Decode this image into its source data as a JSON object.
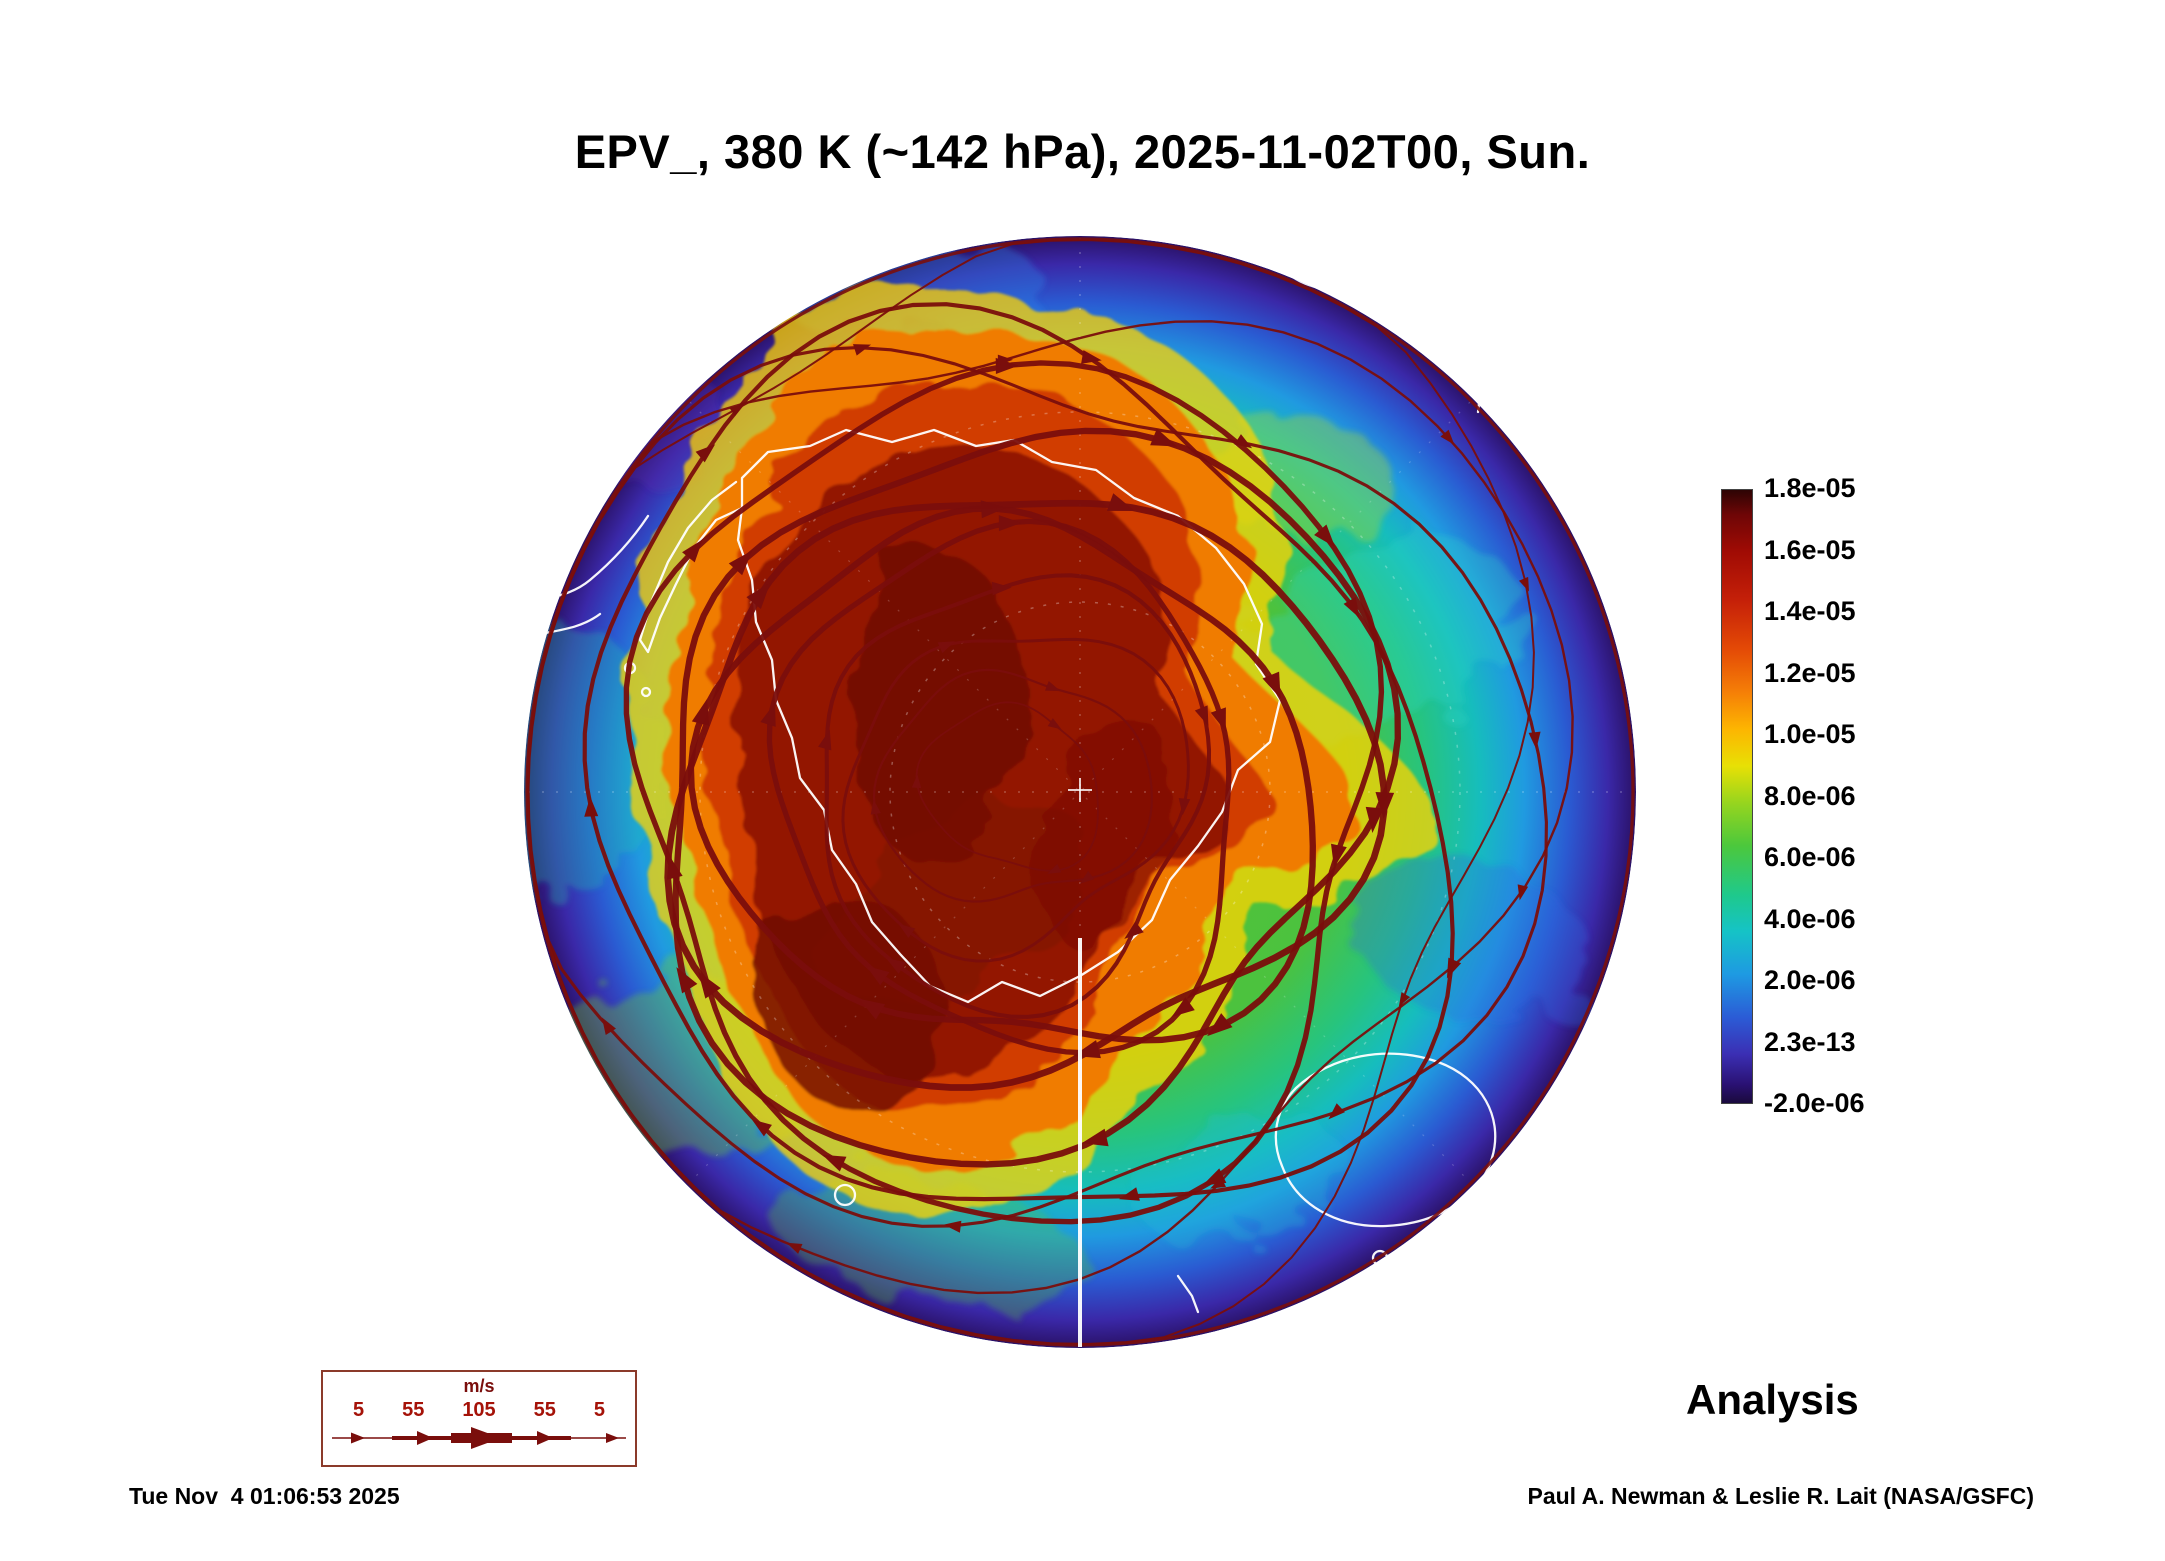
{
  "title": "EPV_, 380 K (~142 hPa), 2025-11-02T00, Sun.",
  "colorbar": {
    "ticks": [
      "1.8e-05",
      "1.6e-05",
      "1.4e-05",
      "1.2e-05",
      "1.0e-05",
      "8.0e-06",
      "6.0e-06",
      "4.0e-06",
      "2.0e-06",
      "2.3e-13",
      "-2.0e-06"
    ]
  },
  "wind_legend": {
    "unit": "m/s",
    "values": [
      "5",
      "55",
      "105",
      "55",
      "5"
    ]
  },
  "analysis_label": "Analysis",
  "footer": {
    "timestamp": "Tue Nov  4 01:06:53 2025",
    "credit": "Paul A. Newman & Leslie R. Lait (NASA/GSFC)"
  },
  "colors": {
    "streamline": "#7a0e0c",
    "legend_numbers": "#a51208",
    "coastline": "#ffffff",
    "vortex_core": "#6e0b03",
    "field_edge": "#2a1166"
  },
  "chart_data": {
    "type": "heatmap",
    "title": "EPV_, 380 K (~142 hPa), 2025-11-02T00, Sun.",
    "quantity": "EPV",
    "level": "380 K (~142 hPa)",
    "valid_time": "2025-11-02T00",
    "day": "Sun.",
    "mode": "Analysis",
    "projection": "southern-hemisphere polar view (Antarctica centered)",
    "colorbar": {
      "orientation": "vertical",
      "tick_labels": [
        "1.8e-05",
        "1.6e-05",
        "1.4e-05",
        "1.2e-05",
        "1.0e-05",
        "8.0e-06",
        "6.0e-06",
        "4.0e-06",
        "2.0e-06",
        "2.3e-13",
        "-2.0e-06"
      ],
      "top_color": "dark red",
      "bottom_color": "dark purple"
    },
    "overlay": {
      "type": "streamlines",
      "units": "m/s",
      "scale_values": [
        5,
        55,
        105,
        55,
        5
      ],
      "color": "#7a0e0c",
      "direction": "clockwise circumpolar flow"
    },
    "features": [
      "high EPV core (dark red / maroon) centered over Antarctica",
      "orange-yellow ring surrounding the vortex core",
      "green mid-latitude band",
      "blue to purple low EPV toward outer boundary",
      "white coastlines drawn over the field",
      "thick dark-red streamlines at the vortex edge"
    ]
  }
}
